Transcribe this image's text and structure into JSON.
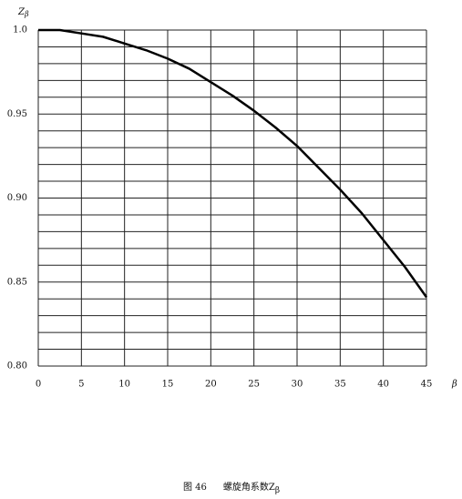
{
  "chart_data": {
    "type": "line",
    "ylabel": "Z",
    "ylabel_sub": "β",
    "xlabel": "β",
    "caption_number": "图 46",
    "caption": "螺旋角系数Z",
    "caption_sub": "β",
    "x": [
      0,
      2.5,
      5,
      7.5,
      10,
      12.5,
      15,
      17.5,
      20,
      22.5,
      25,
      27.5,
      30,
      32.5,
      35,
      37.5,
      40,
      42.5,
      45
    ],
    "series": [
      {
        "color": "#000000",
        "values": [
          1.0,
          1.0,
          0.998,
          0.996,
          0.992,
          0.988,
          0.983,
          0.977,
          0.969,
          0.961,
          0.952,
          0.942,
          0.931,
          0.918,
          0.905,
          0.891,
          0.875,
          0.859,
          0.841
        ]
      }
    ],
    "xlim": [
      0,
      45
    ],
    "xticks": [
      0,
      5,
      10,
      15,
      20,
      25,
      30,
      35,
      40,
      45
    ],
    "ylim": [
      0.8,
      1.0
    ],
    "yticks": [
      {
        "value": 0.8,
        "label": "0.80"
      },
      0.85,
      {
        "value": 0.9,
        "label": "0.90"
      },
      0.95,
      {
        "value": 1.0,
        "label": "1.0"
      }
    ],
    "ygrid": [
      0.8,
      0.81,
      0.82,
      0.83,
      0.84,
      0.85,
      0.86,
      0.87,
      0.88,
      0.89,
      0.9,
      0.91,
      0.92,
      0.93,
      0.94,
      0.95,
      0.96,
      0.97,
      0.98,
      0.99,
      1.0
    ],
    "grid": true
  }
}
